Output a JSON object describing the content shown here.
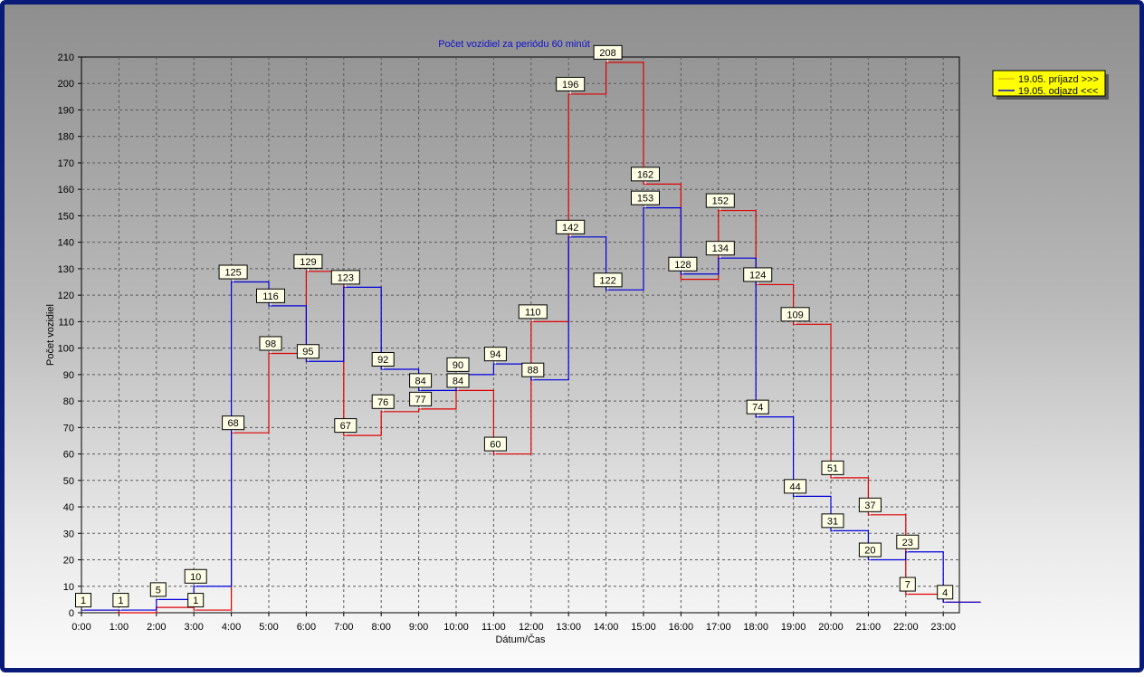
{
  "chart_data": {
    "type": "line",
    "step": true,
    "title": "Počet vozidiel za periódu 60 minút",
    "xlabel": "Dátum/Čas",
    "ylabel": "Počet vozidiel",
    "categories": [
      "0:00",
      "1:00",
      "2:00",
      "3:00",
      "4:00",
      "5:00",
      "6:00",
      "7:00",
      "8:00",
      "9:00",
      "10:00",
      "11:00",
      "12:00",
      "13:00",
      "14:00",
      "15:00",
      "16:00",
      "17:00",
      "18:00",
      "19:00",
      "20:00",
      "21:00",
      "22:00",
      "23:00"
    ],
    "ylim": [
      0,
      210
    ],
    "yticks": [
      0,
      10,
      20,
      30,
      40,
      50,
      60,
      70,
      80,
      90,
      100,
      110,
      120,
      130,
      140,
      150,
      160,
      170,
      180,
      190,
      200,
      210
    ],
    "grid": true,
    "legend_position": "top-right, outside plot",
    "series": [
      {
        "name": "19.05.  príjazd >>>",
        "color": "#e00000",
        "values": [
          1,
          0,
          2,
          1,
          68,
          98,
          129,
          67,
          76,
          77,
          84,
          60,
          110,
          196,
          208,
          162,
          126,
          152,
          124,
          109,
          51,
          37,
          7,
          4
        ]
      },
      {
        "name": "19.05.  odjazd <<<",
        "color": "#0000dd",
        "values": [
          1,
          1,
          5,
          10,
          125,
          116,
          95,
          123,
          92,
          84,
          90,
          94,
          88,
          142,
          122,
          153,
          128,
          134,
          74,
          44,
          31,
          20,
          23,
          4
        ]
      }
    ],
    "data_labels": [
      {
        "hour": 0,
        "text": "1"
      },
      {
        "hour": 1,
        "text": "1"
      },
      {
        "hour": 2,
        "text": "5"
      },
      {
        "hour": 3,
        "text": "10"
      },
      {
        "hour": 3,
        "text": "1"
      },
      {
        "hour": 4,
        "text": "125"
      },
      {
        "hour": 4,
        "text": "68"
      },
      {
        "hour": 5,
        "text": "116"
      },
      {
        "hour": 5,
        "text": "98"
      },
      {
        "hour": 6,
        "text": "129"
      },
      {
        "hour": 6,
        "text": "95"
      },
      {
        "hour": 7,
        "text": "123"
      },
      {
        "hour": 7,
        "text": "67"
      },
      {
        "hour": 8,
        "text": "92"
      },
      {
        "hour": 8,
        "text": "76"
      },
      {
        "hour": 9,
        "text": "84"
      },
      {
        "hour": 9,
        "text": "77"
      },
      {
        "hour": 10,
        "text": "90"
      },
      {
        "hour": 10,
        "text": "84"
      },
      {
        "hour": 11,
        "text": "94"
      },
      {
        "hour": 11,
        "text": "60"
      },
      {
        "hour": 12,
        "text": "110"
      },
      {
        "hour": 12,
        "text": "88"
      },
      {
        "hour": 13,
        "text": "196"
      },
      {
        "hour": 13,
        "text": "142"
      },
      {
        "hour": 14,
        "text": "208"
      },
      {
        "hour": 14,
        "text": "122"
      },
      {
        "hour": 15,
        "text": "162"
      },
      {
        "hour": 15,
        "text": "153"
      },
      {
        "hour": 16,
        "text": "128"
      },
      {
        "hour": 17,
        "text": "152"
      },
      {
        "hour": 17,
        "text": "134"
      },
      {
        "hour": 18,
        "text": "124"
      },
      {
        "hour": 18,
        "text": "74"
      },
      {
        "hour": 19,
        "text": "109"
      },
      {
        "hour": 19,
        "text": "44"
      },
      {
        "hour": 20,
        "text": "51"
      },
      {
        "hour": 20,
        "text": "31"
      },
      {
        "hour": 21,
        "text": "37"
      },
      {
        "hour": 21,
        "text": "20"
      },
      {
        "hour": 22,
        "text": "23"
      },
      {
        "hour": 22,
        "text": "7"
      },
      {
        "hour": 23,
        "text": "4"
      }
    ]
  }
}
